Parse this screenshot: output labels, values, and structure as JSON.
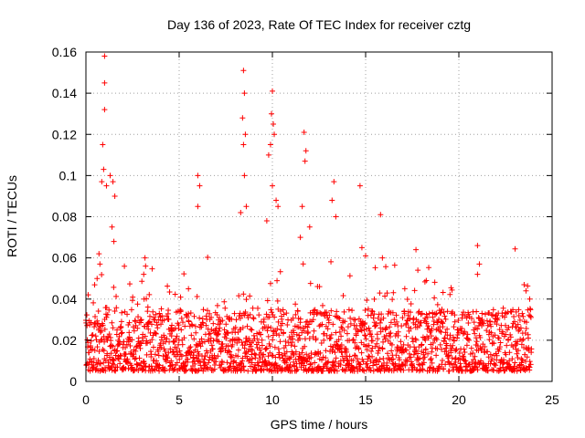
{
  "chart_data": {
    "type": "scatter",
    "title": "Day 136 of 2023, Rate Of TEC Index for receiver cztg",
    "xlabel": "GPS time / hours",
    "ylabel": "ROTI / TECUs",
    "xlim": [
      0,
      25
    ],
    "ylim": [
      0,
      0.16
    ],
    "x_ticks": [
      0,
      5,
      10,
      15,
      20,
      25
    ],
    "y_ticks": [
      0,
      0.02,
      0.04,
      0.06,
      0.08,
      0.1,
      0.12,
      0.14,
      0.16
    ],
    "x_tick_labels": [
      "0",
      "5",
      "10",
      "15",
      "20",
      "25"
    ],
    "y_tick_labels": [
      "0",
      "0.02",
      "0.04",
      "0.06",
      "0.08",
      "0.1",
      "0.12",
      "0.14",
      "0.16"
    ],
    "grid": true,
    "marker": "plus",
    "marker_color": "#ff0000",
    "series": [
      {
        "x": [
          1.0,
          1.0,
          1.0,
          0.9,
          0.95,
          0.85,
          1.1,
          1.3,
          1.45,
          1.55,
          1.4,
          1.5,
          0.7,
          0.75,
          0.6,
          6.0,
          6.0,
          6.1,
          3.2,
          3.1,
          5.5,
          8.45,
          8.5,
          8.4,
          8.55,
          8.45,
          8.5,
          8.6,
          8.3,
          10.0,
          9.95,
          10.05,
          10.1,
          9.9,
          9.8,
          10.0,
          10.2,
          9.7,
          10.3,
          11.7,
          11.8,
          11.75,
          11.6,
          12.0,
          11.5,
          13.3,
          13.2,
          13.4,
          14.7,
          14.8,
          15.0,
          15.8,
          15.9,
          17.7,
          17.8,
          21.0,
          21.1,
          21.0,
          23.5,
          23.6,
          23.8
        ],
        "y": [
          0.158,
          0.145,
          0.132,
          0.115,
          0.103,
          0.097,
          0.095,
          0.1,
          0.097,
          0.09,
          0.075,
          0.068,
          0.062,
          0.057,
          0.05,
          0.1,
          0.085,
          0.095,
          0.056,
          0.052,
          0.045,
          0.151,
          0.14,
          0.128,
          0.12,
          0.115,
          0.1,
          0.085,
          0.082,
          0.141,
          0.13,
          0.125,
          0.12,
          0.115,
          0.11,
          0.095,
          0.088,
          0.078,
          0.085,
          0.121,
          0.112,
          0.107,
          0.085,
          0.075,
          0.07,
          0.097,
          0.088,
          0.08,
          0.095,
          0.065,
          0.061,
          0.081,
          0.06,
          0.064,
          0.054,
          0.066,
          0.057,
          0.052,
          0.047,
          0.044,
          0.04
        ]
      }
    ],
    "background_band": {
      "y_min": 0.005,
      "y_typical": 0.015,
      "y_upper": 0.035,
      "x_start": 0.0,
      "x_end": 23.9,
      "point_spacing_hours": 0.012
    }
  }
}
